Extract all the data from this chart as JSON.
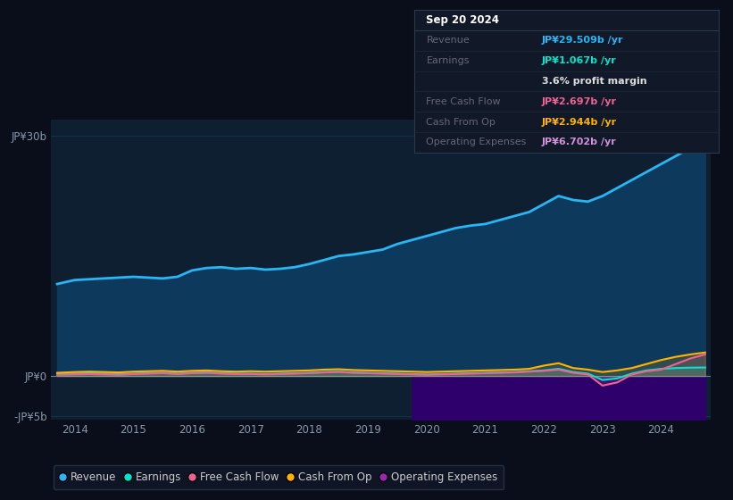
{
  "background_color": "#0a0e1a",
  "plot_bg_color": "#0d1f30",
  "years": [
    2013.7,
    2014.0,
    2014.25,
    2014.5,
    2014.75,
    2015.0,
    2015.25,
    2015.5,
    2015.75,
    2016.0,
    2016.25,
    2016.5,
    2016.75,
    2017.0,
    2017.25,
    2017.5,
    2017.75,
    2018.0,
    2018.25,
    2018.5,
    2018.75,
    2019.0,
    2019.25,
    2019.5,
    2019.75,
    2020.0,
    2020.25,
    2020.5,
    2020.75,
    2021.0,
    2021.25,
    2021.5,
    2021.75,
    2022.0,
    2022.25,
    2022.5,
    2022.75,
    2023.0,
    2023.25,
    2023.5,
    2023.75,
    2024.0,
    2024.25,
    2024.5,
    2024.75
  ],
  "revenue": [
    11.5,
    12.0,
    12.1,
    12.2,
    12.3,
    12.4,
    12.3,
    12.2,
    12.4,
    13.2,
    13.5,
    13.6,
    13.4,
    13.5,
    13.3,
    13.4,
    13.6,
    14.0,
    14.5,
    15.0,
    15.2,
    15.5,
    15.8,
    16.5,
    17.0,
    17.5,
    18.0,
    18.5,
    18.8,
    19.0,
    19.5,
    20.0,
    20.5,
    21.5,
    22.5,
    22.0,
    21.8,
    22.5,
    23.5,
    24.5,
    25.5,
    26.5,
    27.5,
    28.5,
    29.5
  ],
  "earnings": [
    0.3,
    0.3,
    0.35,
    0.3,
    0.25,
    0.3,
    0.35,
    0.4,
    0.3,
    0.4,
    0.45,
    0.35,
    0.3,
    0.3,
    0.25,
    0.3,
    0.35,
    0.4,
    0.5,
    0.55,
    0.45,
    0.4,
    0.35,
    0.3,
    0.25,
    0.2,
    0.25,
    0.3,
    0.35,
    0.4,
    0.45,
    0.5,
    0.6,
    0.7,
    0.9,
    0.5,
    0.3,
    -0.5,
    -0.3,
    0.3,
    0.7,
    0.9,
    1.0,
    1.05,
    1.067
  ],
  "free_cash_flow": [
    0.15,
    0.2,
    0.25,
    0.2,
    0.15,
    0.25,
    0.3,
    0.35,
    0.25,
    0.35,
    0.4,
    0.3,
    0.25,
    0.25,
    0.2,
    0.25,
    0.3,
    0.35,
    0.45,
    0.5,
    0.4,
    0.35,
    0.3,
    0.25,
    0.2,
    0.15,
    0.2,
    0.25,
    0.3,
    0.35,
    0.4,
    0.45,
    0.55,
    0.65,
    0.8,
    0.4,
    0.2,
    -1.2,
    -0.8,
    0.2,
    0.6,
    0.8,
    1.5,
    2.2,
    2.697
  ],
  "cash_from_op": [
    0.4,
    0.5,
    0.55,
    0.5,
    0.45,
    0.55,
    0.6,
    0.65,
    0.55,
    0.65,
    0.7,
    0.6,
    0.55,
    0.6,
    0.55,
    0.6,
    0.65,
    0.7,
    0.8,
    0.85,
    0.75,
    0.7,
    0.65,
    0.6,
    0.55,
    0.5,
    0.55,
    0.6,
    0.65,
    0.7,
    0.75,
    0.8,
    0.9,
    1.3,
    1.6,
    1.0,
    0.8,
    0.5,
    0.7,
    1.0,
    1.5,
    2.0,
    2.4,
    2.7,
    2.944
  ],
  "op_expenses_years": [
    2019.75,
    2020.0,
    2020.25,
    2020.5,
    2020.75,
    2021.0,
    2021.25,
    2021.5,
    2021.75,
    2022.0,
    2022.25,
    2022.5,
    2022.75,
    2023.0,
    2023.25,
    2023.5,
    2023.75,
    2024.0,
    2024.25,
    2024.5,
    2024.75
  ],
  "op_expenses_neg": [
    -6.5,
    -6.5,
    -6.5,
    -6.5,
    -6.5,
    -6.5,
    -6.5,
    -6.5,
    -6.5,
    -6.5,
    -6.5,
    -6.5,
    -6.5,
    -6.5,
    -6.5,
    -6.5,
    -6.6,
    -6.6,
    -6.65,
    -6.7,
    -6.702
  ],
  "ylim": [
    -5.5,
    32
  ],
  "ytick_positions": [
    -5,
    0,
    30
  ],
  "ytick_labels": [
    "-JP¥5b",
    "JP¥0",
    "JP¥30b"
  ],
  "xtick_years": [
    2014,
    2015,
    2016,
    2017,
    2018,
    2019,
    2020,
    2021,
    2022,
    2023,
    2024
  ],
  "legend_items": [
    {
      "label": "Revenue",
      "color": "#29b6f6",
      "marker": "o"
    },
    {
      "label": "Earnings",
      "color": "#00e5cc",
      "marker": "o"
    },
    {
      "label": "Free Cash Flow",
      "color": "#f06292",
      "marker": "o"
    },
    {
      "label": "Cash From Op",
      "color": "#ffb300",
      "marker": "o"
    },
    {
      "label": "Operating Expenses",
      "color": "#9c27b0",
      "marker": "o"
    }
  ],
  "revenue_color": "#29b6f6",
  "earnings_color": "#00e5cc",
  "free_cash_flow_color": "#f06292",
  "cash_from_op_color": "#ffb300",
  "op_expenses_line_color": "#ce93d8",
  "fill_revenue_color": "#0d3a5c",
  "fill_op_color": "#2d006b",
  "grid_color": "#1a3a50",
  "tooltip_bg": "#0a0e1a",
  "tooltip_border": "#333344",
  "tooltip_rows": [
    {
      "label": "Sep 20 2024",
      "value": null,
      "value_color": null,
      "is_header": true
    },
    {
      "label": "Revenue",
      "value": "JP¥29.509b /yr",
      "value_color": "#29b6f6",
      "is_header": false
    },
    {
      "label": "Earnings",
      "value": "JP¥1.067b /yr",
      "value_color": "#00e5cc",
      "is_header": false
    },
    {
      "label": "",
      "value": "3.6% profit margin",
      "value_color": "#ffffff",
      "is_header": false
    },
    {
      "label": "Free Cash Flow",
      "value": "JP¥2.697b /yr",
      "value_color": "#f06292",
      "is_header": false
    },
    {
      "label": "Cash From Op",
      "value": "JP¥2.944b /yr",
      "value_color": "#ffb300",
      "is_header": false
    },
    {
      "label": "Operating Expenses",
      "value": "JP¥6.702b /yr",
      "value_color": "#ce93d8",
      "is_header": false
    }
  ]
}
